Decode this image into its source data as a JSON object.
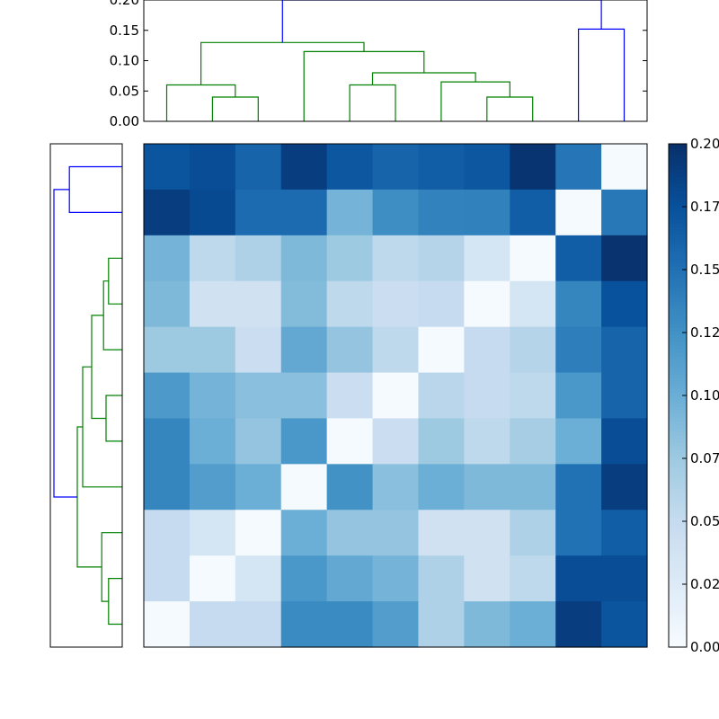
{
  "chart_data": [
    {
      "type": "heatmap",
      "title": "",
      "rows": 11,
      "cols": 11,
      "values": [
        [
          0.172,
          0.178,
          0.16,
          0.19,
          0.17,
          0.16,
          0.165,
          0.17,
          0.197,
          0.147,
          0.002
        ],
        [
          0.19,
          0.18,
          0.155,
          0.155,
          0.095,
          0.128,
          0.137,
          0.138,
          0.165,
          0.002,
          0.145
        ],
        [
          0.095,
          0.055,
          0.065,
          0.09,
          0.075,
          0.055,
          0.06,
          0.035,
          0.002,
          0.165,
          0.198
        ],
        [
          0.09,
          0.04,
          0.04,
          0.088,
          0.055,
          0.045,
          0.05,
          0.002,
          0.035,
          0.135,
          0.175
        ],
        [
          0.075,
          0.075,
          0.045,
          0.105,
          0.08,
          0.055,
          0.002,
          0.05,
          0.06,
          0.14,
          0.16
        ],
        [
          0.118,
          0.095,
          0.085,
          0.085,
          0.045,
          0.002,
          0.058,
          0.05,
          0.055,
          0.12,
          0.16
        ],
        [
          0.135,
          0.1,
          0.08,
          0.12,
          0.002,
          0.045,
          0.075,
          0.055,
          0.07,
          0.1,
          0.178
        ],
        [
          0.135,
          0.115,
          0.1,
          0.002,
          0.125,
          0.085,
          0.1,
          0.09,
          0.09,
          0.15,
          0.19
        ],
        [
          0.05,
          0.035,
          0.002,
          0.1,
          0.08,
          0.08,
          0.04,
          0.04,
          0.065,
          0.15,
          0.165
        ],
        [
          0.05,
          0.002,
          0.035,
          0.12,
          0.105,
          0.095,
          0.065,
          0.04,
          0.055,
          0.178,
          0.178
        ],
        [
          0.002,
          0.05,
          0.05,
          0.13,
          0.13,
          0.115,
          0.065,
          0.09,
          0.1,
          0.19,
          0.172
        ]
      ],
      "colormap": [
        "#f7fbff",
        "#deebf7",
        "#c6dbef",
        "#9ecae1",
        "#6baed6",
        "#4292c6",
        "#2171b5",
        "#08519c",
        "#08306b"
      ],
      "vmin": 0.0,
      "vmax": 0.2
    },
    {
      "type": "dendrogram",
      "orientation": "top",
      "yticks": [
        "0.00",
        "0.05",
        "0.10",
        "0.15",
        "0.20"
      ],
      "ylim": [
        0,
        0.2
      ],
      "leaf_positions": [
        5,
        15,
        25,
        35,
        45,
        55,
        65,
        75,
        85,
        95,
        105
      ],
      "links": [
        {
          "a": 15,
          "ha": 0,
          "b": 25,
          "hb": 0,
          "h": 0.04,
          "color": "#008000"
        },
        {
          "a": 5,
          "ha": 0,
          "b": 20,
          "hb": 0.04,
          "h": 0.06,
          "color": "#008000"
        },
        {
          "a": 45,
          "ha": 0,
          "b": 55,
          "hb": 0,
          "h": 0.06,
          "color": "#008000"
        },
        {
          "a": 75,
          "ha": 0,
          "b": 85,
          "hb": 0,
          "h": 0.04,
          "color": "#008000"
        },
        {
          "a": 65,
          "ha": 0,
          "b": 80,
          "hb": 0.04,
          "h": 0.065,
          "color": "#008000"
        },
        {
          "a": 50,
          "ha": 0.06,
          "b": 72.5,
          "hb": 0.065,
          "h": 0.08,
          "color": "#008000"
        },
        {
          "a": 35,
          "ha": 0,
          "b": 61.25,
          "hb": 0.08,
          "h": 0.115,
          "color": "#008000"
        },
        {
          "a": 12.5,
          "ha": 0.06,
          "b": 48.125,
          "hb": 0.115,
          "h": 0.13,
          "color": "#008000"
        },
        {
          "a": 95,
          "ha": 0,
          "b": 105,
          "hb": 0,
          "h": 0.152,
          "color": "#0000ff"
        },
        {
          "a": 30.3125,
          "ha": 0.13,
          "b": 100,
          "hb": 0.152,
          "h": 0.2,
          "color": "#0000ff"
        }
      ]
    },
    {
      "type": "dendrogram",
      "orientation": "left",
      "ylim": [
        0,
        0.2
      ],
      "leaf_positions": [
        5,
        15,
        25,
        35,
        45,
        55,
        65,
        75,
        85,
        95,
        105
      ],
      "links": [
        {
          "a": 5,
          "ha": 0,
          "b": 15,
          "hb": 0,
          "h": 0.147,
          "color": "#0000ff"
        },
        {
          "a": 25,
          "ha": 0,
          "b": 35,
          "hb": 0,
          "h": 0.038,
          "color": "#008000"
        },
        {
          "a": 30,
          "ha": 0.038,
          "b": 45,
          "hb": 0,
          "h": 0.052,
          "color": "#008000"
        },
        {
          "a": 55,
          "ha": 0,
          "b": 65,
          "hb": 0,
          "h": 0.045,
          "color": "#008000"
        },
        {
          "a": 37.5,
          "ha": 0.052,
          "b": 60,
          "hb": 0.045,
          "h": 0.085,
          "color": "#008000"
        },
        {
          "a": 48.75,
          "ha": 0.085,
          "b": 75,
          "hb": 0,
          "h": 0.11,
          "color": "#008000"
        },
        {
          "a": 95,
          "ha": 0,
          "b": 105,
          "hb": 0,
          "h": 0.038,
          "color": "#008000"
        },
        {
          "a": 85,
          "ha": 0,
          "b": 100,
          "hb": 0.038,
          "h": 0.057,
          "color": "#008000"
        },
        {
          "a": 61.875,
          "ha": 0.11,
          "b": 92.5,
          "hb": 0.057,
          "h": 0.125,
          "color": "#008000"
        },
        {
          "a": 10,
          "ha": 0.147,
          "b": 77.1875,
          "hb": 0.125,
          "h": 0.19,
          "color": "#0000ff"
        }
      ]
    },
    {
      "type": "colorbar",
      "ticks": [
        "0.00",
        "0.02",
        "0.05",
        "0.07",
        "0.10",
        "0.12",
        "0.15",
        "0.17",
        "0.20"
      ],
      "tick_values": [
        0.0,
        0.025,
        0.05,
        0.075,
        0.1,
        0.125,
        0.15,
        0.175,
        0.2
      ]
    }
  ]
}
